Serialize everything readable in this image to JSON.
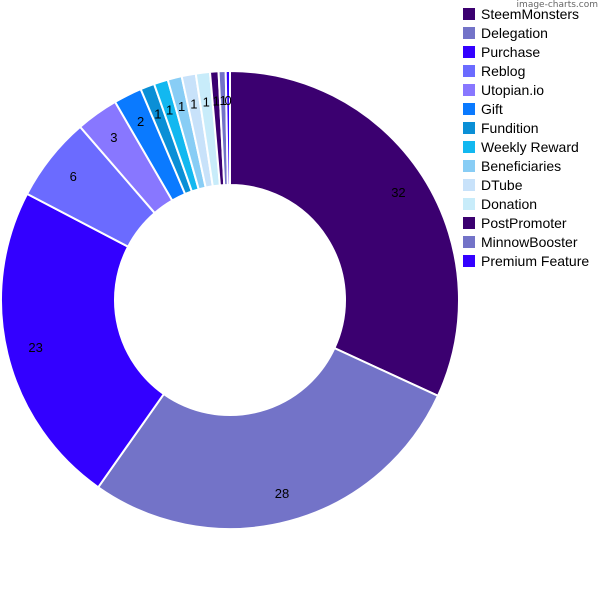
{
  "watermark": "image-charts.com",
  "chart_data": {
    "type": "pie",
    "variant": "donut",
    "legend_position": "right",
    "categories": [
      "SteemMonsters",
      "Delegation",
      "Purchase",
      "Reblog",
      "Utopian.io",
      "Gift",
      "Fundition",
      "Weekly Reward",
      "Beneficiaries",
      "DTube",
      "Donation",
      "PostPromoter",
      "MinnowBooster",
      "Premium Feature"
    ],
    "values": [
      32,
      28,
      23,
      6,
      3,
      2,
      1,
      1,
      1,
      1,
      1,
      0.6,
      0.5,
      0.3
    ],
    "value_labels": [
      "32",
      "28",
      "23",
      "6",
      "3",
      "2",
      "1",
      "1",
      "1",
      "1",
      "1",
      "1",
      "1",
      "0"
    ],
    "colors": [
      "#3b0070",
      "#7373c8",
      "#3300ff",
      "#6b6bff",
      "#8877ff",
      "#0a7aff",
      "#0a8fd6",
      "#12b8f0",
      "#88cdf5",
      "#c8e2fa",
      "#c8ecfa",
      "#3b0070",
      "#7373c8",
      "#3300ff"
    ]
  }
}
